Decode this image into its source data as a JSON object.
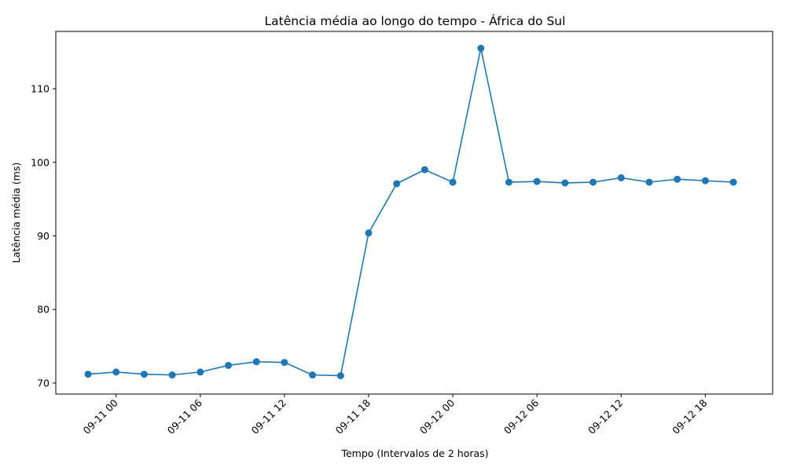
{
  "chart_data": {
    "type": "line",
    "title": "Latência média ao longo do tempo - África do Sul",
    "xlabel": "Tempo (Intervalos de 2 horas)",
    "ylabel": "Latência média (ms)",
    "x_ticks": [
      {
        "label": "09-11 00",
        "hour": 0
      },
      {
        "label": "09-11 06",
        "hour": 6
      },
      {
        "label": "09-11 12",
        "hour": 12
      },
      {
        "label": "09-11 18",
        "hour": 18
      },
      {
        "label": "09-12 00",
        "hour": 24
      },
      {
        "label": "09-12 06",
        "hour": 30
      },
      {
        "label": "09-12 12",
        "hour": 36
      },
      {
        "label": "09-12 18",
        "hour": 42
      }
    ],
    "y_ticks": [
      70,
      80,
      90,
      100,
      110
    ],
    "xlim_hours": [
      -4.3,
      46.8
    ],
    "ylim": [
      68.5,
      117.8
    ],
    "grid": false,
    "color": "#1f77b4",
    "series": [
      {
        "x_hours": [
          -2,
          0,
          2,
          4,
          6,
          8,
          10,
          12,
          14,
          16,
          18,
          20,
          22,
          24,
          26,
          28,
          30,
          32,
          34,
          36,
          38,
          40,
          42,
          44
        ],
        "x": [
          "09-10 22",
          "09-11 00",
          "09-11 02",
          "09-11 04",
          "09-11 06",
          "09-11 08",
          "09-11 10",
          "09-11 12",
          "09-11 14",
          "09-11 16",
          "09-11 18",
          "09-11 20",
          "09-11 22",
          "09-12 00",
          "09-12 02",
          "09-12 04",
          "09-12 06",
          "09-12 08",
          "09-12 10",
          "09-12 12",
          "09-12 14",
          "09-12 16",
          "09-12 18",
          "09-12 20"
        ],
        "values": [
          71.2,
          71.5,
          71.2,
          71.1,
          71.5,
          72.4,
          72.9,
          72.8,
          71.1,
          71.0,
          90.4,
          97.1,
          99.0,
          97.3,
          115.5,
          97.3,
          97.4,
          97.2,
          97.3,
          97.9,
          97.3,
          97.7,
          97.5,
          97.3
        ]
      }
    ]
  }
}
